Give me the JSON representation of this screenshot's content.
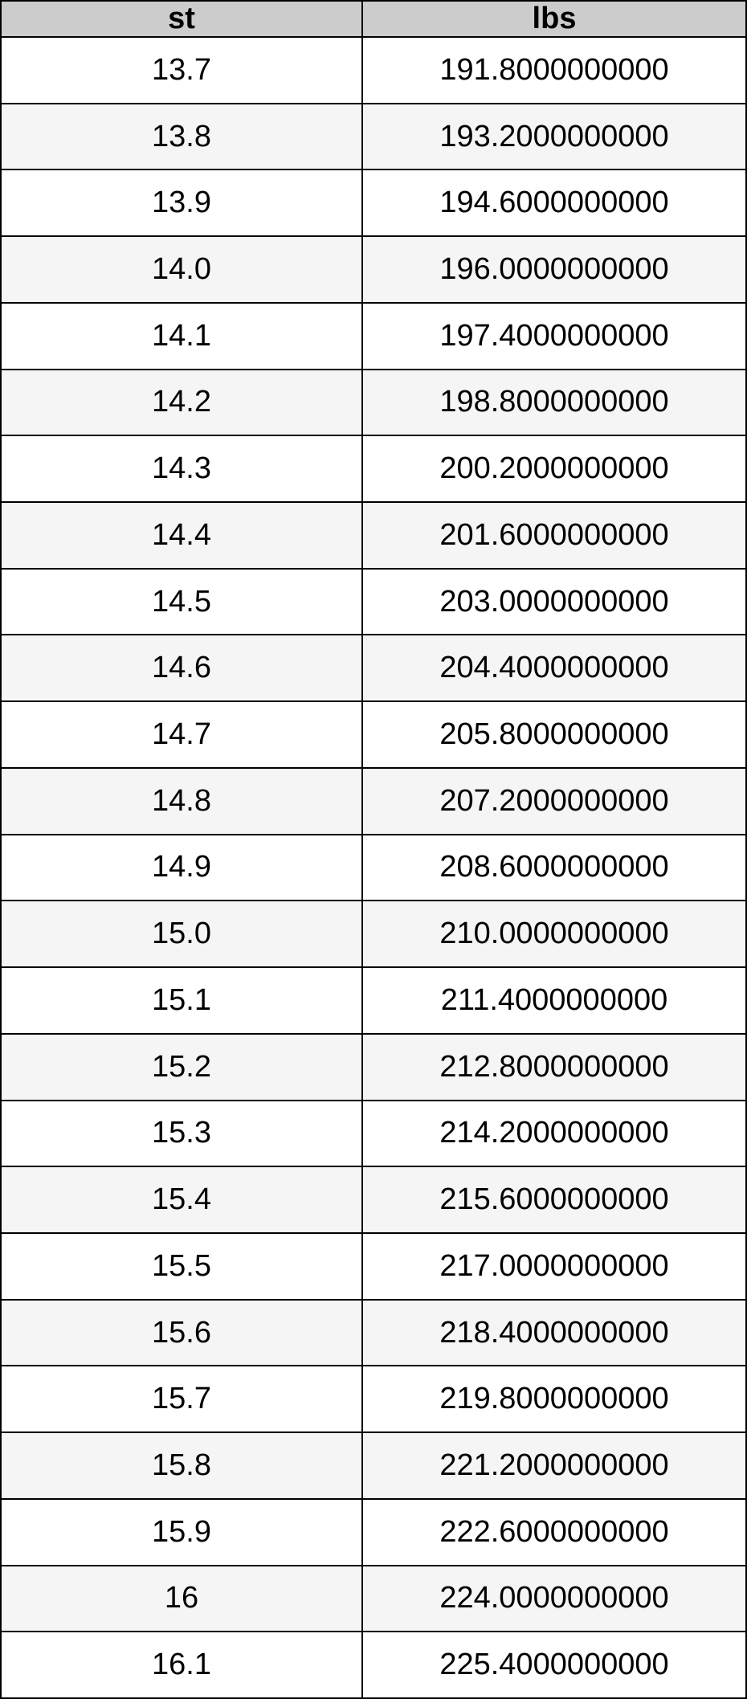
{
  "table": {
    "header": [
      "st",
      "lbs"
    ],
    "rows": [
      [
        "13.7",
        "191.8000000000"
      ],
      [
        "13.8",
        "193.2000000000"
      ],
      [
        "13.9",
        "194.6000000000"
      ],
      [
        "14.0",
        "196.0000000000"
      ],
      [
        "14.1",
        "197.4000000000"
      ],
      [
        "14.2",
        "198.8000000000"
      ],
      [
        "14.3",
        "200.2000000000"
      ],
      [
        "14.4",
        "201.6000000000"
      ],
      [
        "14.5",
        "203.0000000000"
      ],
      [
        "14.6",
        "204.4000000000"
      ],
      [
        "14.7",
        "205.8000000000"
      ],
      [
        "14.8",
        "207.2000000000"
      ],
      [
        "14.9",
        "208.6000000000"
      ],
      [
        "15.0",
        "210.0000000000"
      ],
      [
        "15.1",
        "211.4000000000"
      ],
      [
        "15.2",
        "212.8000000000"
      ],
      [
        "15.3",
        "214.2000000000"
      ],
      [
        "15.4",
        "215.6000000000"
      ],
      [
        "15.5",
        "217.0000000000"
      ],
      [
        "15.6",
        "218.4000000000"
      ],
      [
        "15.7",
        "219.8000000000"
      ],
      [
        "15.8",
        "221.2000000000"
      ],
      [
        "15.9",
        "222.6000000000"
      ],
      [
        "16",
        "224.0000000000"
      ],
      [
        "16.1",
        "225.4000000000"
      ]
    ]
  }
}
